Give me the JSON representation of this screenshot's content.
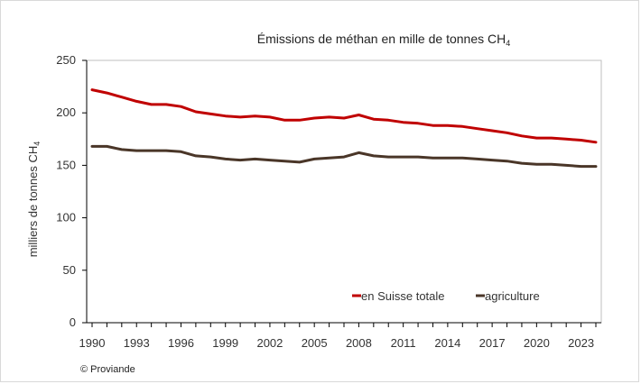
{
  "title": {
    "main": "Émissions de méthan en mille de tonnes CH",
    "subscript": "4"
  },
  "ylabel": {
    "main": "milliers de tonnes CH",
    "subscript": "4"
  },
  "copyright": "© Proviande",
  "colors": {
    "total": "#c00000",
    "agriculture": "#4a3628",
    "axis": "#000000",
    "plot_border": "#bfbfbf",
    "text": "#333333"
  },
  "chart_data": {
    "type": "line",
    "title": "Émissions de méthan en mille de tonnes CH4",
    "xlabel": "",
    "ylabel": "milliers de tonnes CH4",
    "ylim": [
      0,
      250
    ],
    "yticks": [
      0,
      50,
      100,
      150,
      200,
      250
    ],
    "xticks": [
      1990,
      1993,
      1996,
      1999,
      2002,
      2005,
      2008,
      2011,
      2014,
      2017,
      2020,
      2023
    ],
    "grid": false,
    "legend_position": "bottom-right",
    "x": [
      1990,
      1991,
      1992,
      1993,
      1994,
      1995,
      1996,
      1997,
      1998,
      1999,
      2000,
      2001,
      2002,
      2003,
      2004,
      2005,
      2006,
      2007,
      2008,
      2009,
      2010,
      2011,
      2012,
      2013,
      2014,
      2015,
      2016,
      2017,
      2018,
      2019,
      2020,
      2021,
      2022,
      2023,
      2024
    ],
    "series": [
      {
        "name": "en Suisse totale",
        "color": "#c00000",
        "values": [
          222,
          219,
          215,
          211,
          208,
          208,
          206,
          201,
          199,
          197,
          196,
          197,
          196,
          193,
          193,
          195,
          196,
          195,
          198,
          194,
          193,
          191,
          190,
          188,
          188,
          187,
          185,
          183,
          181,
          178,
          176,
          176,
          175,
          174,
          172
        ]
      },
      {
        "name": "agriculture",
        "color": "#4a3628",
        "values": [
          168,
          168,
          165,
          164,
          164,
          164,
          163,
          159,
          158,
          156,
          155,
          156,
          155,
          154,
          153,
          156,
          157,
          158,
          162,
          159,
          158,
          158,
          158,
          157,
          157,
          157,
          156,
          155,
          154,
          152,
          151,
          151,
          150,
          149,
          149
        ]
      }
    ]
  }
}
